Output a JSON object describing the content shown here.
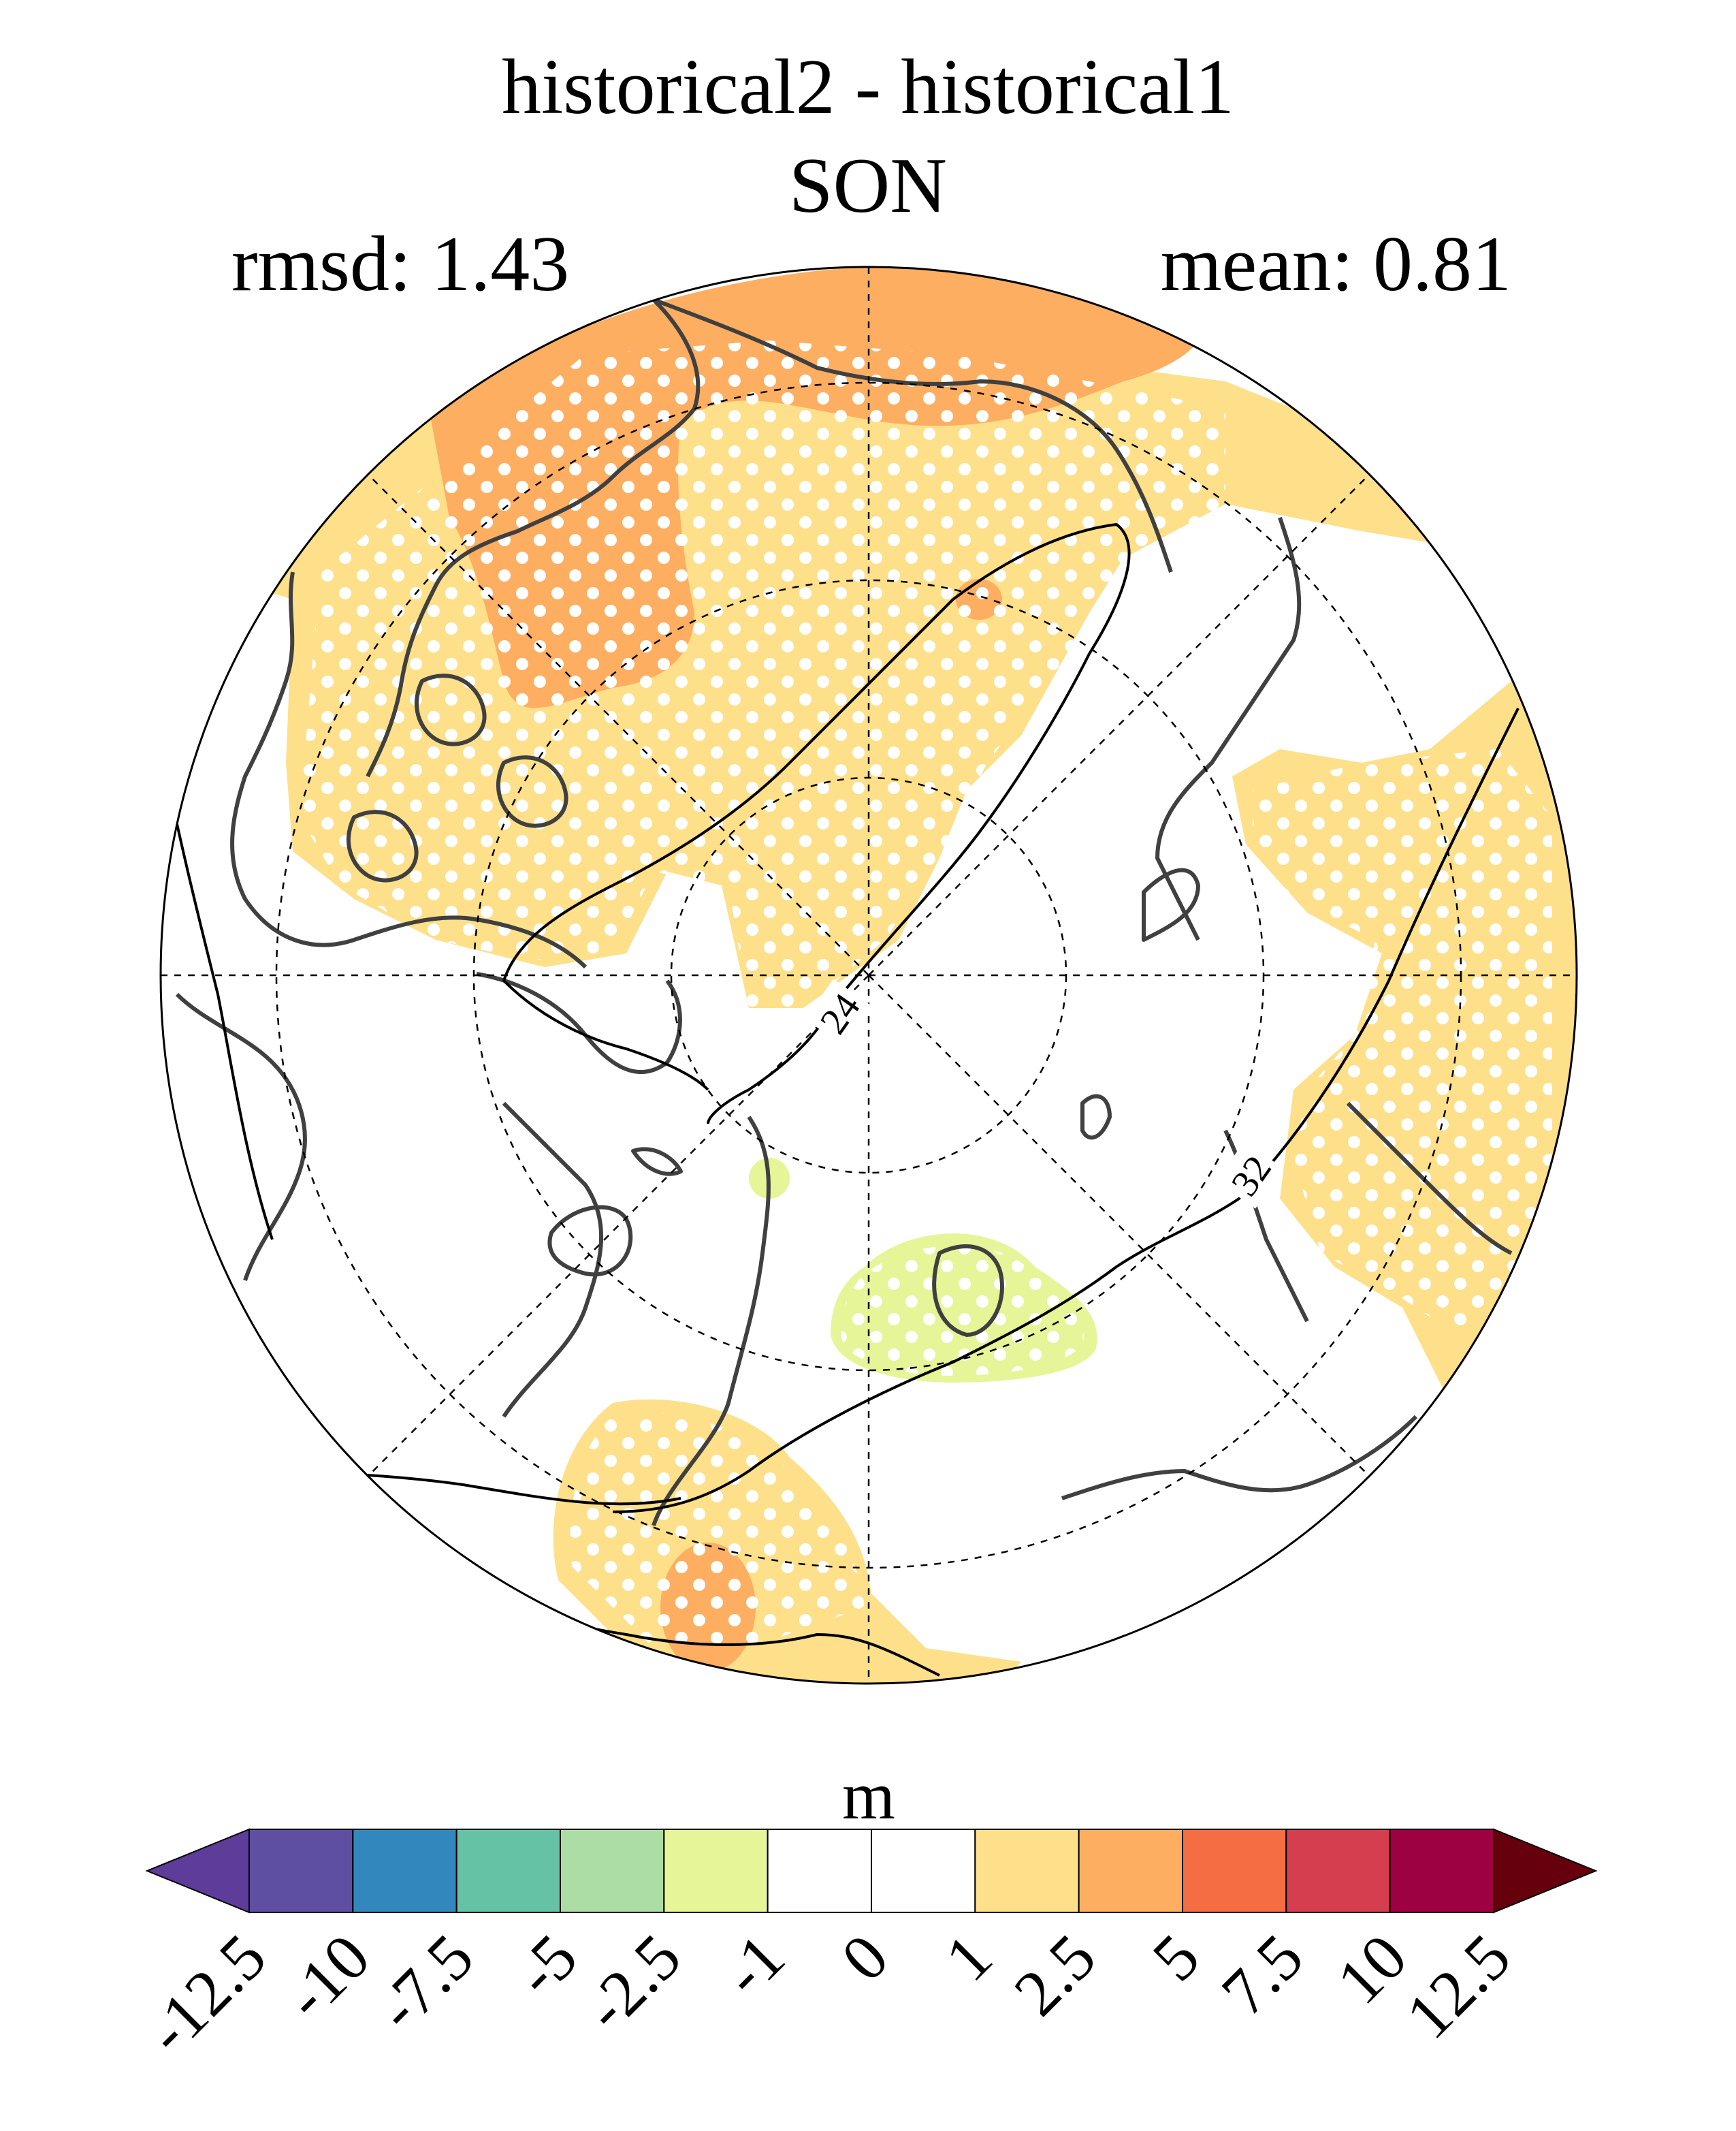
{
  "title": {
    "line1": "historical2 - historical1",
    "line2": "SON"
  },
  "stats": {
    "rmsd_label": "rmsd: 1.43",
    "mean_label": "mean: 0.81"
  },
  "map": {
    "projection": "north polar stereographic",
    "contour_labels": [
      "24",
      "32"
    ],
    "colors": {
      "ocean_fill": "#ffffff",
      "coast": "#404040",
      "grid": "#000000",
      "contour": "#000000",
      "light_orange": "#fee08b",
      "orange": "#fdae61",
      "light_green": "#e6f598",
      "stipple": "#ffffff"
    }
  },
  "colorbar": {
    "unit": "m",
    "tick_labels": [
      "-12.5",
      "-10",
      "-7.5",
      "-5",
      "-2.5",
      "-1",
      "0",
      "1",
      "2.5",
      "5",
      "7.5",
      "10",
      "12.5"
    ],
    "colors": [
      "#5e3c99",
      "#5e4fa2",
      "#3288bd",
      "#66c2a5",
      "#abdda4",
      "#e6f598",
      "#ffffff",
      "#ffffff",
      "#fee08b",
      "#fdae61",
      "#f46d43",
      "#d53e4f",
      "#9e0142",
      "#67000d"
    ]
  }
}
